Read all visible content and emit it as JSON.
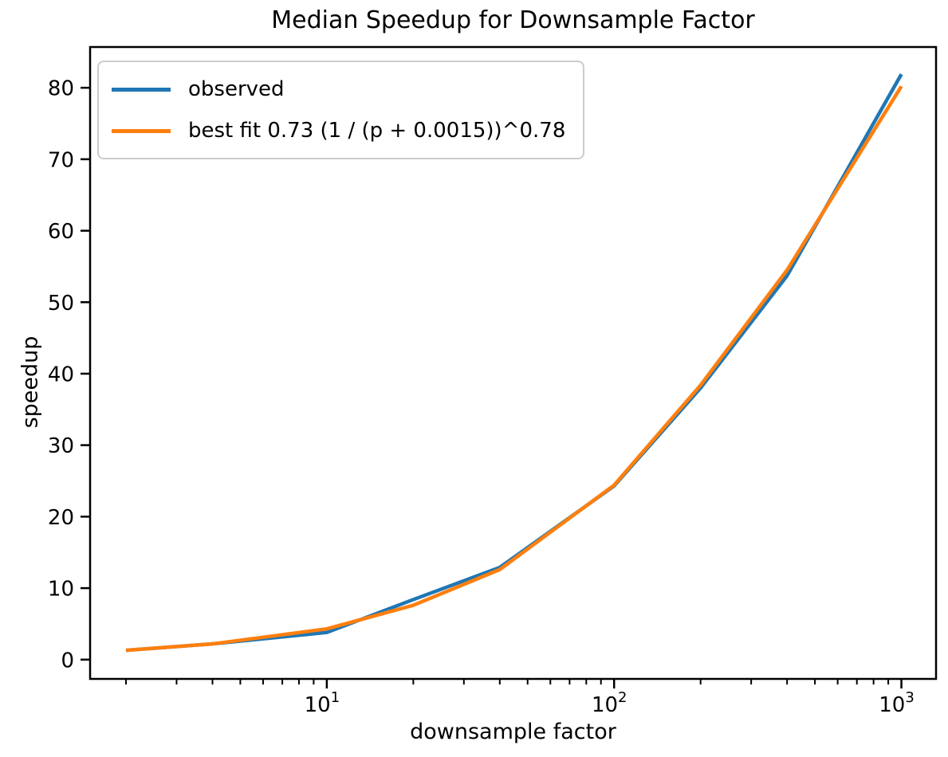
{
  "figure": {
    "background": "#ffffff"
  },
  "chart_data": {
    "type": "line",
    "title": "Median Speedup for Downsample Factor",
    "xlabel": "downsample factor",
    "ylabel": "speedup",
    "x_scale": "log",
    "grid": false,
    "xlim": [
      1.5,
      1320
    ],
    "ylim": [
      -2.7,
      85.7
    ],
    "x": [
      2,
      4,
      10,
      20,
      40,
      100,
      200,
      400,
      1000
    ],
    "series": [
      {
        "name": "observed",
        "color": "#1f77b4",
        "values": [
          1.3,
          2.2,
          3.8,
          8.4,
          12.9,
          24.3,
          38.0,
          53.7,
          81.9
        ]
      },
      {
        "name": "best fit 0.73 (1 / (p + 0.0015))^0.78",
        "color": "#ff7f0e",
        "values": [
          1.3,
          2.2,
          4.3,
          7.6,
          12.6,
          24.4,
          38.4,
          54.5,
          80.2
        ]
      }
    ],
    "x_major_ticks": [
      {
        "value": 10,
        "base": "10",
        "exp": "1"
      },
      {
        "value": 100,
        "base": "10",
        "exp": "2"
      },
      {
        "value": 1000,
        "base": "10",
        "exp": "3"
      }
    ],
    "y_ticks": [
      0,
      10,
      20,
      30,
      40,
      50,
      60,
      70,
      80
    ],
    "legend": {
      "position": "upper left",
      "entries": [
        "observed",
        "best fit 0.73 (1 / (p + 0.0015))^0.78"
      ]
    }
  },
  "colors": {
    "axis": "#000000",
    "tick_label": "#000000",
    "legend_border": "#cccccc"
  }
}
